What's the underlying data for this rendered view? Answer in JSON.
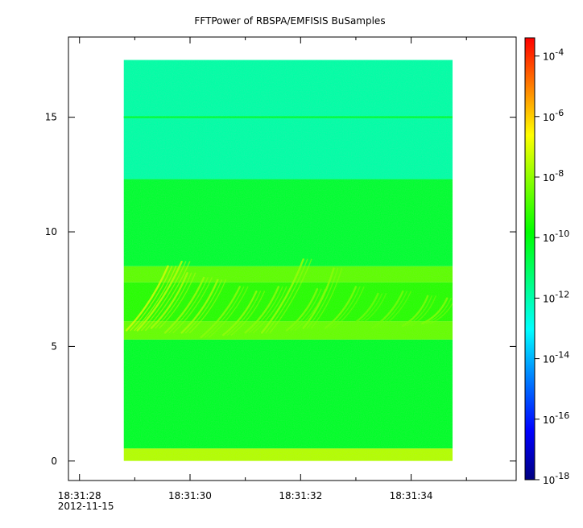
{
  "chart_data": {
    "type": "heatmap",
    "title": "FFTPower of RBSPA/EMFISIS  BuSamples",
    "xlabel": "",
    "ylabel": "",
    "x_ticks": [
      {
        "label": "18:31:28",
        "sublabel": "2012-11-15",
        "value": 28
      },
      {
        "label": "18:31:30",
        "value": 30
      },
      {
        "label": "18:31:32",
        "value": 32
      },
      {
        "label": "18:31:34",
        "value": 34
      }
    ],
    "x_minor_ticks": [
      29,
      31,
      33,
      35
    ],
    "xlim": [
      27.8,
      35.9
    ],
    "data_xrange": [
      28.8,
      34.75
    ],
    "y_ticks": [
      {
        "label": "0",
        "value": 0
      },
      {
        "label": "5",
        "value": 5
      },
      {
        "label": "10",
        "value": 10
      },
      {
        "label": "15",
        "value": 15
      }
    ],
    "ylim": [
      -0.85,
      18.5
    ],
    "data_yrange": [
      0,
      17.5
    ],
    "colorbar": {
      "scale": "log",
      "range_exp": [
        -18,
        -3.4
      ],
      "ticks": [
        {
          "base": "10",
          "exp": "-4",
          "value": -4
        },
        {
          "base": "10",
          "exp": "-6",
          "value": -6
        },
        {
          "base": "10",
          "exp": "-8",
          "value": -8
        },
        {
          "base": "10",
          "exp": "-10",
          "value": -10
        },
        {
          "base": "10",
          "exp": "-12",
          "value": -12
        },
        {
          "base": "10",
          "exp": "-14",
          "value": -14
        },
        {
          "base": "10",
          "exp": "-16",
          "value": -16
        },
        {
          "base": "10",
          "exp": "-18",
          "value": -18
        }
      ],
      "colormap": [
        "#00007f",
        "#0000ff",
        "#007fff",
        "#00ffff",
        "#00ff7f",
        "#00ff00",
        "#7fff00",
        "#ffff00",
        "#ff7f00",
        "#ff0000"
      ]
    },
    "spectrum_bands": [
      {
        "y_from": 0,
        "y_to": 0.55,
        "log_power": -7.6
      },
      {
        "y_from": 0.55,
        "y_to": 5.3,
        "log_power": -10.4
      },
      {
        "y_from": 5.3,
        "y_to": 6.1,
        "log_power": -8.6
      },
      {
        "y_from": 6.1,
        "y_to": 7.8,
        "log_power": -9.4
      },
      {
        "y_from": 7.8,
        "y_to": 8.5,
        "log_power": -8.7
      },
      {
        "y_from": 8.5,
        "y_to": 12.3,
        "log_power": -10.5
      },
      {
        "y_from": 12.3,
        "y_to": 17.5,
        "log_power": -12.0
      }
    ],
    "line_features": [
      {
        "y": 15.0,
        "log_power": -10.6
      }
    ],
    "chorus_elements": [
      {
        "x": 28.85,
        "y_start": 5.7,
        "y_end": 8.5,
        "x_end": 29.6,
        "log_power": -7.3
      },
      {
        "x": 29.05,
        "y_start": 5.7,
        "y_end": 8.7,
        "x_end": 29.85,
        "log_power": -7.6
      },
      {
        "x": 29.3,
        "y_start": 5.8,
        "y_end": 8.2,
        "x_end": 29.95,
        "log_power": -7.8
      },
      {
        "x": 29.55,
        "y_start": 5.6,
        "y_end": 8.0,
        "x_end": 30.25,
        "log_power": -8.0
      },
      {
        "x": 29.85,
        "y_start": 5.6,
        "y_end": 7.9,
        "x_end": 30.5,
        "log_power": -7.9
      },
      {
        "x": 30.2,
        "y_start": 5.4,
        "y_end": 7.6,
        "x_end": 30.9,
        "log_power": -8.2
      },
      {
        "x": 30.6,
        "y_start": 5.5,
        "y_end": 7.4,
        "x_end": 31.2,
        "log_power": -8.1
      },
      {
        "x": 31.0,
        "y_start": 5.6,
        "y_end": 7.6,
        "x_end": 31.6,
        "log_power": -8.2
      },
      {
        "x": 31.3,
        "y_start": 5.6,
        "y_end": 8.8,
        "x_end": 32.05,
        "log_power": -8.0
      },
      {
        "x": 31.75,
        "y_start": 5.7,
        "y_end": 7.5,
        "x_end": 32.3,
        "log_power": -8.3
      },
      {
        "x": 32.05,
        "y_start": 5.8,
        "y_end": 8.4,
        "x_end": 32.6,
        "log_power": -8.2
      },
      {
        "x": 32.45,
        "y_start": 5.8,
        "y_end": 7.6,
        "x_end": 33.0,
        "log_power": -8.4
      },
      {
        "x": 32.9,
        "y_start": 5.9,
        "y_end": 7.3,
        "x_end": 33.4,
        "log_power": -8.6
      },
      {
        "x": 33.3,
        "y_start": 5.8,
        "y_end": 7.4,
        "x_end": 33.85,
        "log_power": -8.5
      },
      {
        "x": 33.85,
        "y_start": 5.9,
        "y_end": 7.2,
        "x_end": 34.3,
        "log_power": -8.4
      },
      {
        "x": 34.2,
        "y_start": 6.0,
        "y_end": 7.1,
        "x_end": 34.65,
        "log_power": -8.3
      }
    ]
  }
}
